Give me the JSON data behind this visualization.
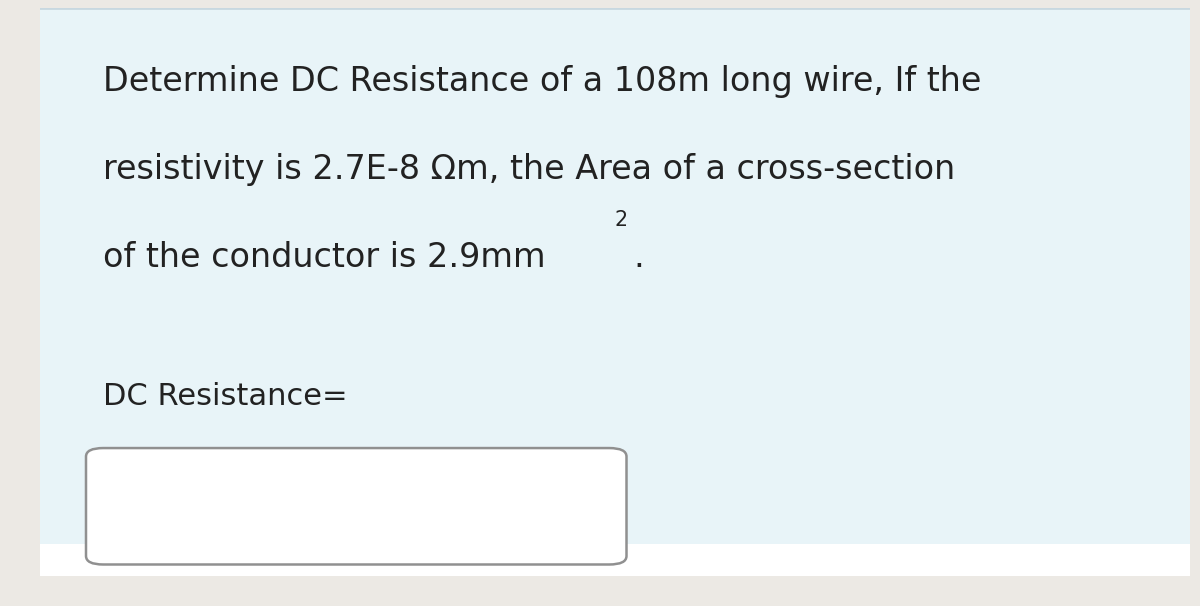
{
  "outer_bg": "#ece9e4",
  "main_bg": "#e8f4f8",
  "top_line_color": "#c8d8e0",
  "bottom_bar_color": "#ffffff",
  "text_color": "#222222",
  "text_fontsize": 24,
  "label_fontsize": 22,
  "input_box_color": "#ffffff",
  "input_box_border": "#909090",
  "figsize": [
    12.0,
    6.06
  ],
  "dpi": 100,
  "line1": "Determine DC Resistance of a 108m long wire, If the",
  "line2": "resistivity is 2.7E-8 Ωm, the Area of a cross-section",
  "line3_main": "of the conductor is 2.9mm",
  "line3_sup": "2",
  "line3_end": ".",
  "label": "DC Resistance="
}
